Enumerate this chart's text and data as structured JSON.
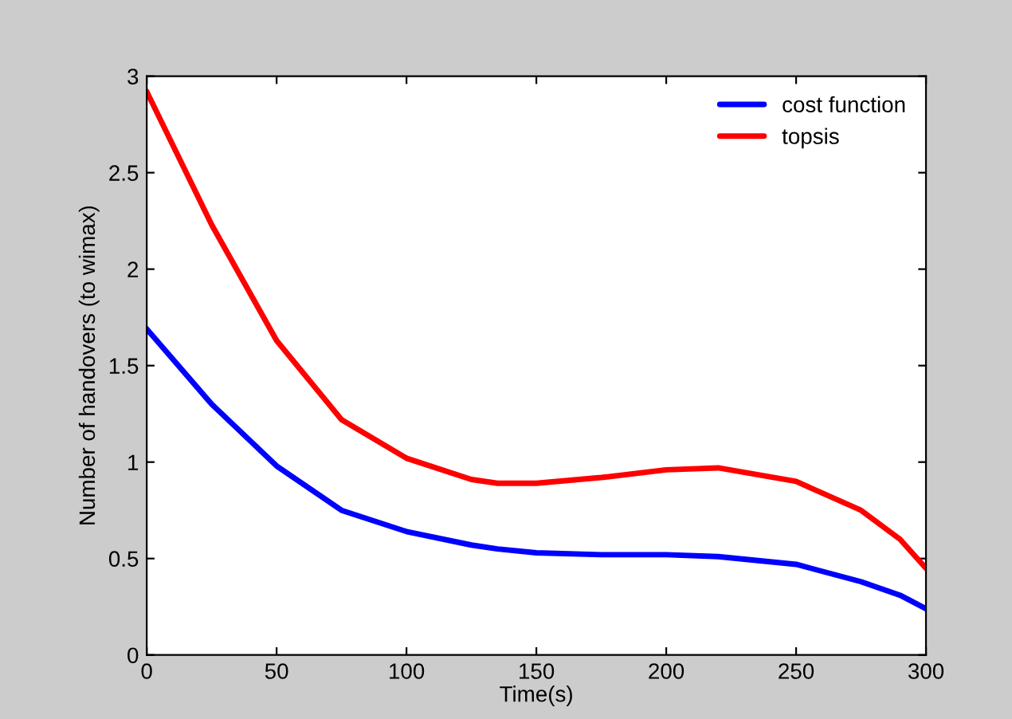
{
  "chart_data": {
    "type": "line",
    "xlabel": "Time(s)",
    "ylabel": "Number of handovers (to wimax)",
    "xlim": [
      0,
      300
    ],
    "ylim": [
      0,
      3
    ],
    "xticks": [
      0,
      50,
      100,
      150,
      200,
      250,
      300
    ],
    "yticks": [
      0,
      0.5,
      1,
      1.5,
      2,
      2.5,
      3
    ],
    "x": [
      0,
      25,
      50,
      75,
      100,
      125,
      135,
      150,
      175,
      200,
      220,
      250,
      275,
      290,
      300
    ],
    "series": [
      {
        "name": "cost function",
        "color": "#0000ff",
        "values": [
          1.69,
          1.3,
          0.98,
          0.75,
          0.64,
          0.57,
          0.55,
          0.53,
          0.52,
          0.52,
          0.51,
          0.47,
          0.38,
          0.31,
          0.24
        ]
      },
      {
        "name": "topsis",
        "color": "#ff0000",
        "values": [
          2.92,
          2.23,
          1.63,
          1.22,
          1.02,
          0.91,
          0.89,
          0.89,
          0.92,
          0.96,
          0.97,
          0.9,
          0.75,
          0.6,
          0.45
        ]
      }
    ],
    "legend": "top right",
    "grid": false,
    "marker": "none",
    "line_style": "solid"
  }
}
